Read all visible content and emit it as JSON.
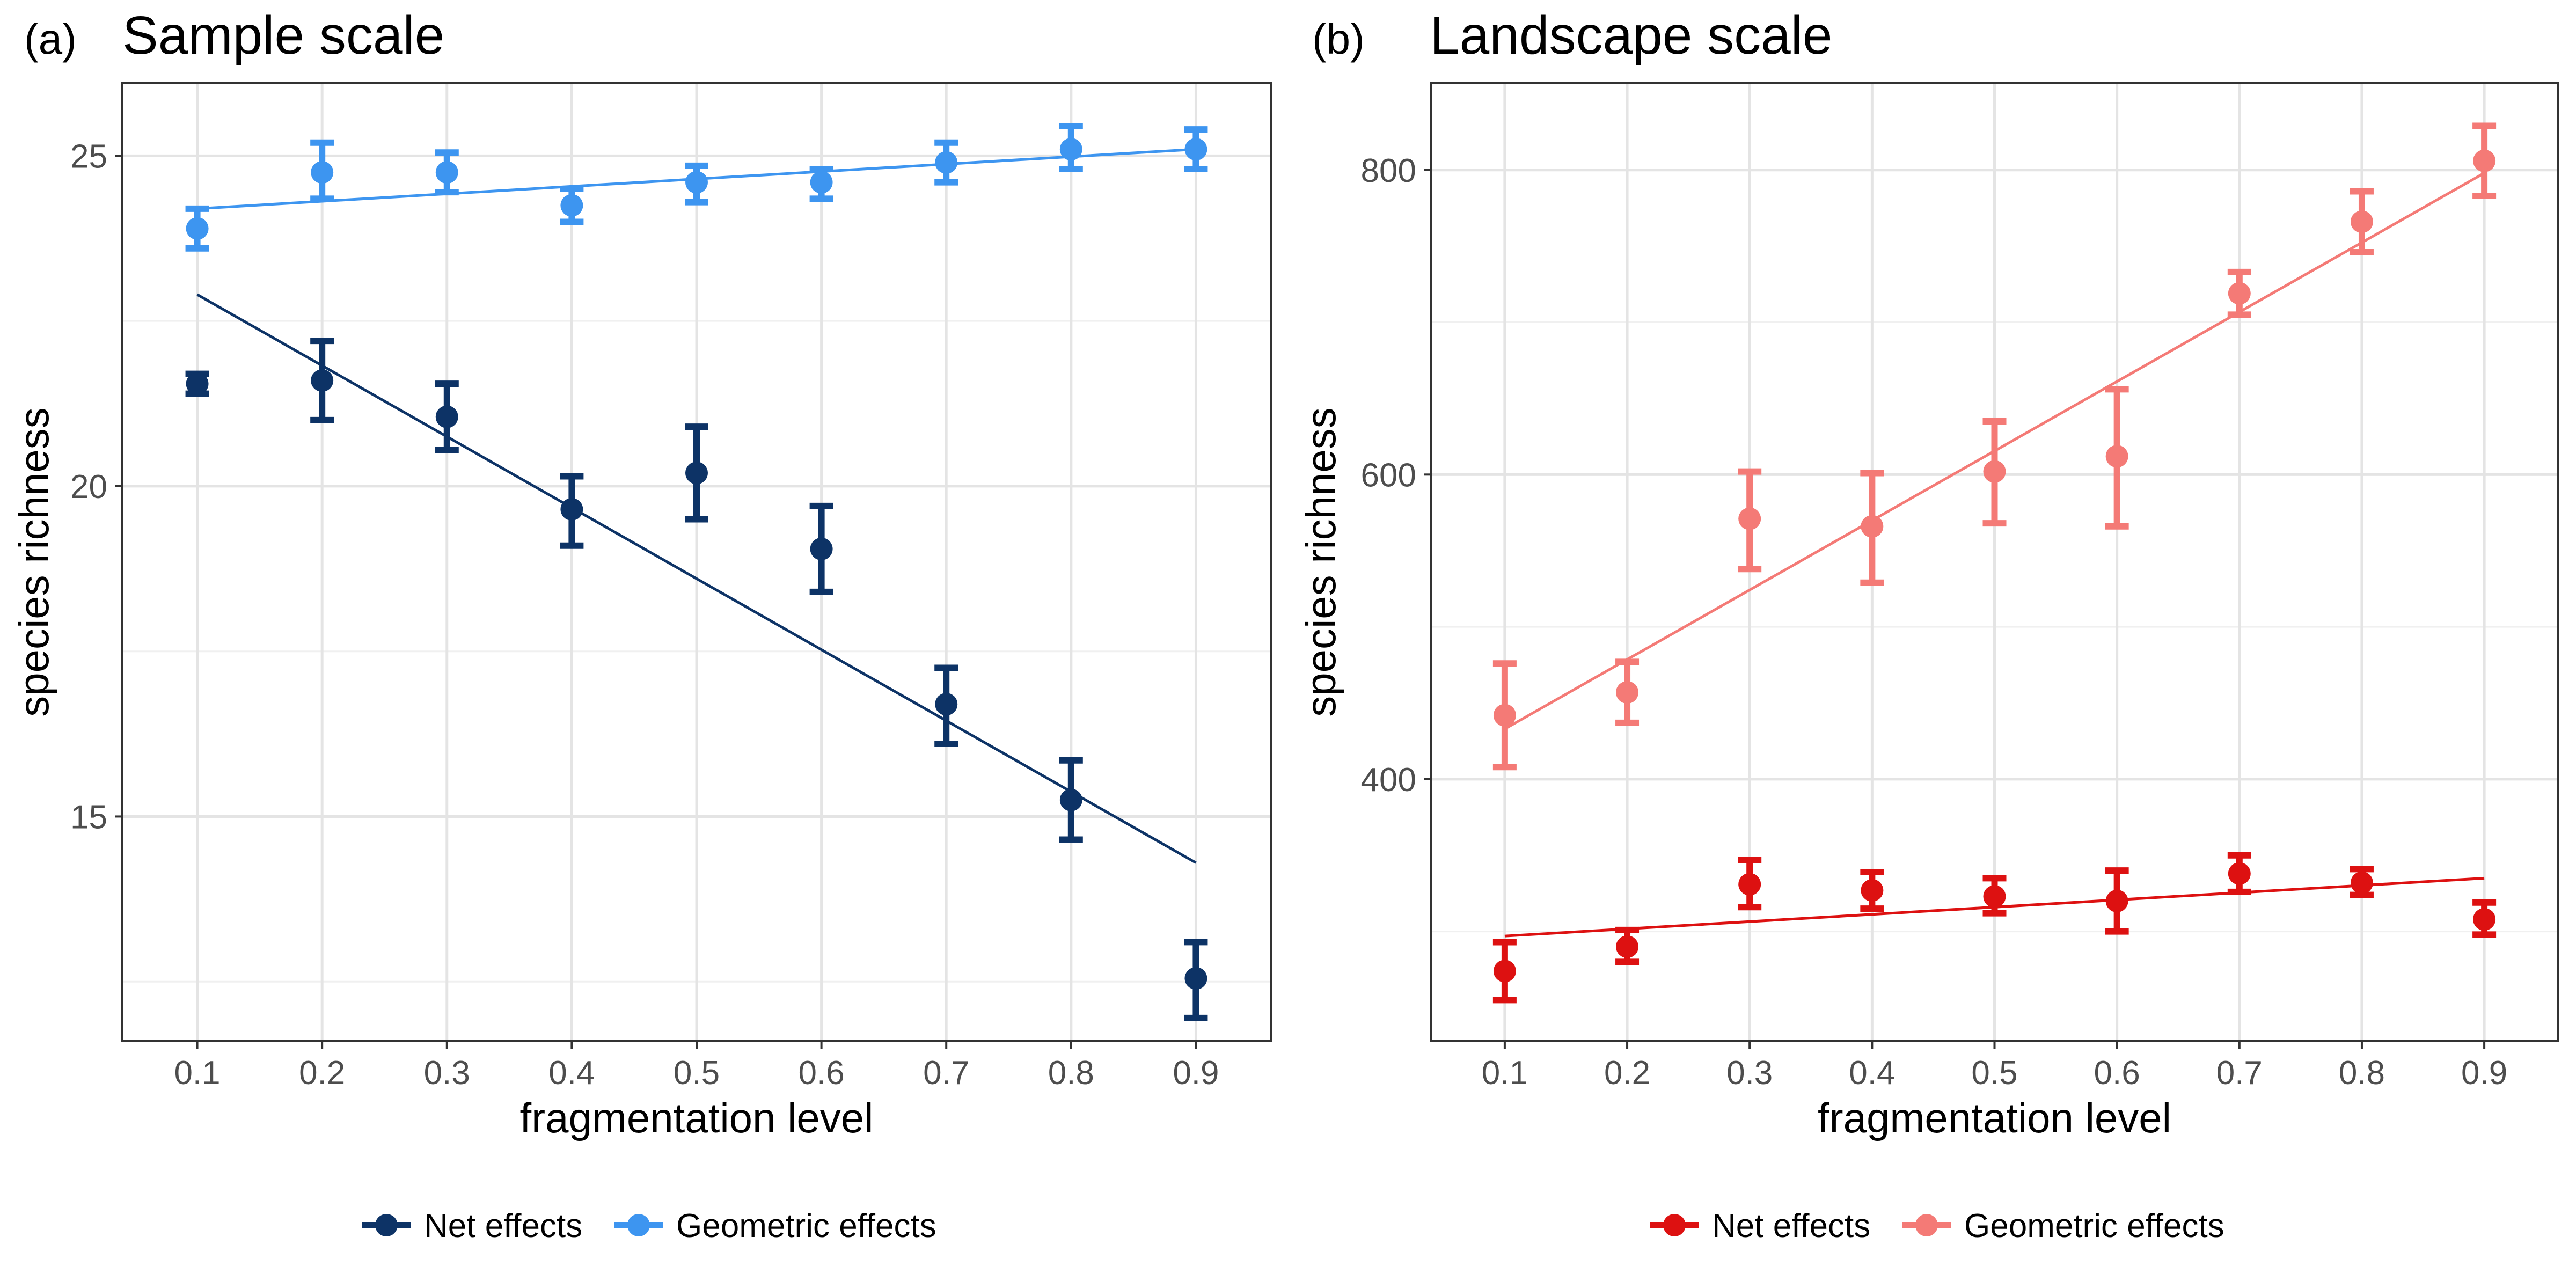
{
  "chart_data": [
    {
      "type": "scatter",
      "panel_label": "(a)",
      "title": "Sample scale",
      "xlabel": "fragmentation level",
      "ylabel": "species richness",
      "xlim": [
        0.04,
        0.96
      ],
      "ylim": [
        11.6,
        26.1
      ],
      "xticks": [
        0.1,
        0.2,
        0.3,
        0.4,
        0.5,
        0.6,
        0.7,
        0.8,
        0.9
      ],
      "xtick_labels": [
        "0.1",
        "0.2",
        "0.3",
        "0.4",
        "0.5",
        "0.6",
        "0.7",
        "0.8",
        "0.9"
      ],
      "yticks": [
        15,
        20,
        25
      ],
      "ytick_labels": [
        "15",
        "20",
        "25"
      ],
      "y_minor": [
        12.5,
        17.5,
        22.5
      ],
      "grid": true,
      "legend_position": "bottom",
      "series": [
        {
          "name": "Net effects",
          "color": "#0d3366",
          "x": [
            0.1,
            0.2,
            0.3,
            0.4,
            0.5,
            0.6,
            0.7,
            0.8,
            0.9
          ],
          "y": [
            21.55,
            21.6,
            21.05,
            19.65,
            20.2,
            19.05,
            16.7,
            15.25,
            12.55
          ],
          "err_low": [
            21.4,
            21.0,
            20.55,
            19.1,
            19.5,
            18.4,
            16.1,
            14.65,
            11.95
          ],
          "err_high": [
            21.7,
            22.2,
            21.55,
            20.15,
            20.9,
            19.7,
            17.25,
            15.85,
            13.1
          ],
          "fit": [
            [
              0.1,
              22.9
            ],
            [
              0.9,
              14.3
            ]
          ]
        },
        {
          "name": "Geometric effects",
          "color": "#3d95f0",
          "x": [
            0.1,
            0.2,
            0.3,
            0.4,
            0.5,
            0.6,
            0.7,
            0.8,
            0.9
          ],
          "y": [
            23.9,
            24.75,
            24.75,
            24.25,
            24.6,
            24.6,
            24.9,
            25.1,
            25.1
          ],
          "err_low": [
            23.6,
            24.35,
            24.45,
            24.0,
            24.3,
            24.35,
            24.6,
            24.8,
            24.8
          ],
          "err_high": [
            24.2,
            25.2,
            25.05,
            24.5,
            24.85,
            24.8,
            25.2,
            25.45,
            25.4
          ],
          "fit": [
            [
              0.1,
              24.2
            ],
            [
              0.9,
              25.1
            ]
          ]
        }
      ]
    },
    {
      "type": "scatter",
      "panel_label": "(b)",
      "title": "Landscape scale",
      "xlabel": "fragmentation level",
      "ylabel": "species richness",
      "xlim": [
        0.04,
        0.96
      ],
      "ylim": [
        228,
        857
      ],
      "xticks": [
        0.1,
        0.2,
        0.3,
        0.4,
        0.5,
        0.6,
        0.7,
        0.8,
        0.9
      ],
      "xtick_labels": [
        "0.1",
        "0.2",
        "0.3",
        "0.4",
        "0.5",
        "0.6",
        "0.7",
        "0.8",
        "0.9"
      ],
      "yticks": [
        400,
        600,
        800
      ],
      "ytick_labels": [
        "400",
        "600",
        "800"
      ],
      "y_minor": [
        300,
        500,
        700
      ],
      "grid": true,
      "legend_position": "bottom",
      "series": [
        {
          "name": "Net effects",
          "color": "#dd1111",
          "x": [
            0.1,
            0.2,
            0.3,
            0.4,
            0.5,
            0.6,
            0.7,
            0.8,
            0.9
          ],
          "y": [
            274,
            290,
            331,
            327,
            323,
            320,
            338,
            332,
            308
          ],
          "err_low": [
            255,
            280,
            316,
            315,
            312,
            300,
            326,
            324,
            298
          ],
          "err_high": [
            293,
            301,
            347,
            339,
            335,
            340,
            350,
            341,
            319
          ],
          "fit": [
            [
              0.1,
              297
            ],
            [
              0.9,
              335
            ]
          ]
        },
        {
          "name": "Geometric effects",
          "color": "#f47a76",
          "x": [
            0.1,
            0.2,
            0.3,
            0.4,
            0.5,
            0.6,
            0.7,
            0.8,
            0.9
          ],
          "y": [
            442,
            457,
            571,
            566,
            602,
            612,
            719,
            766,
            806
          ],
          "err_low": [
            408,
            437,
            538,
            529,
            568,
            566,
            705,
            746,
            783
          ],
          "err_high": [
            476,
            477,
            602,
            601,
            635,
            656,
            733,
            786,
            829
          ],
          "fit": [
            [
              0.1,
              433
            ],
            [
              0.9,
              798
            ]
          ]
        }
      ]
    }
  ]
}
